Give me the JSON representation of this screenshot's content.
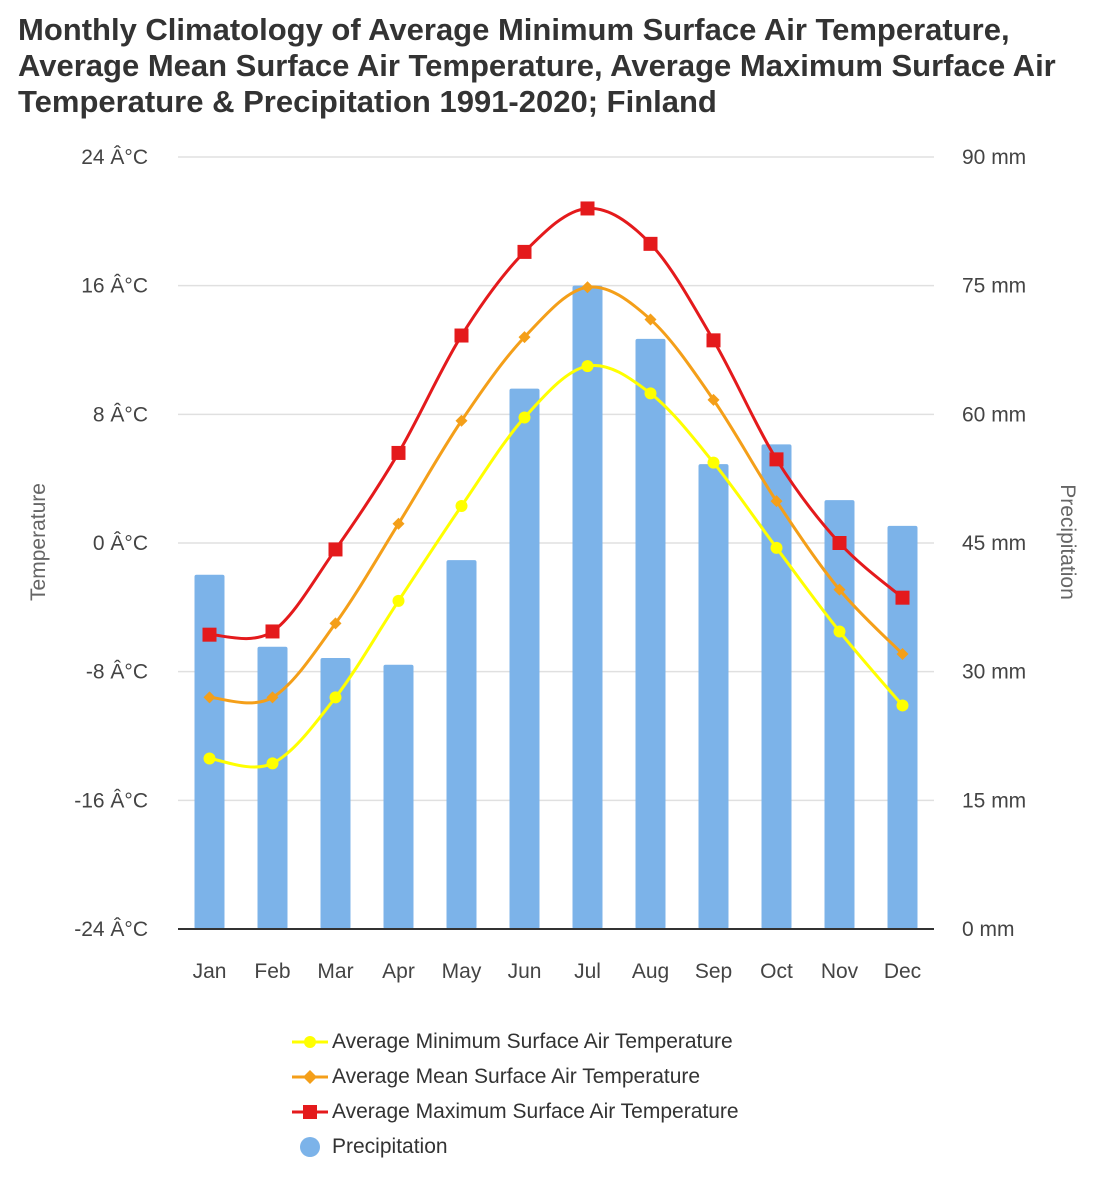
{
  "title_lines": [
    "Monthly Climatology of Average Minimum Surface Air Temperature,",
    "Average Mean Surface Air Temperature, Average Maximum Surface Air",
    "Temperature & Precipitation 1991-2020; Finland"
  ],
  "chart_data": {
    "type": "bar+line",
    "categories": [
      "Jan",
      "Feb",
      "Mar",
      "Apr",
      "May",
      "Jun",
      "Jul",
      "Aug",
      "Sep",
      "Oct",
      "Nov",
      "Dec"
    ],
    "left_axis": {
      "title": "Temperature",
      "range": [
        -24,
        24
      ],
      "ticks": [
        24,
        16,
        8,
        0,
        -8,
        -16,
        -24
      ],
      "tick_labels": [
        "24 Â°C",
        "16 Â°C",
        "8 Â°C",
        "0 Â°C",
        "-8 Â°C",
        "-16 Â°C",
        "-24 Â°C"
      ]
    },
    "right_axis": {
      "title": "Precipitation",
      "range": [
        0,
        90
      ],
      "ticks": [
        90,
        75,
        60,
        45,
        30,
        15,
        0
      ],
      "tick_labels": [
        "90 mm",
        "75 mm",
        "60 mm",
        "45 mm",
        "30 mm",
        "15 mm",
        "0 mm"
      ]
    },
    "bars": {
      "name": "Precipitation",
      "color": "#7cb3e9",
      "values": [
        41.3,
        32.9,
        31.6,
        30.8,
        43.0,
        63.0,
        75.0,
        68.8,
        54.2,
        56.5,
        50.0,
        47.0
      ]
    },
    "series": [
      {
        "name": "Average Minimum Surface Air Temperature",
        "color": "#ffff00",
        "marker": "circle",
        "values": [
          -13.4,
          -13.7,
          -9.6,
          -3.6,
          2.3,
          7.8,
          11.0,
          9.3,
          5.0,
          -0.3,
          -5.5,
          -10.1
        ]
      },
      {
        "name": "Average Mean Surface Air Temperature",
        "color": "#f49f19",
        "marker": "diamond",
        "values": [
          -9.6,
          -9.6,
          -5.0,
          1.2,
          7.6,
          12.8,
          15.9,
          13.9,
          8.9,
          2.6,
          -2.9,
          -6.9
        ]
      },
      {
        "name": "Average Maximum Surface Air Temperature",
        "color": "#e41a1c",
        "marker": "square",
        "values": [
          -5.7,
          -5.5,
          -0.4,
          5.6,
          12.9,
          18.1,
          20.8,
          18.6,
          12.6,
          5.2,
          0.0,
          -3.4
        ]
      }
    ],
    "legend_position": "bottom"
  }
}
